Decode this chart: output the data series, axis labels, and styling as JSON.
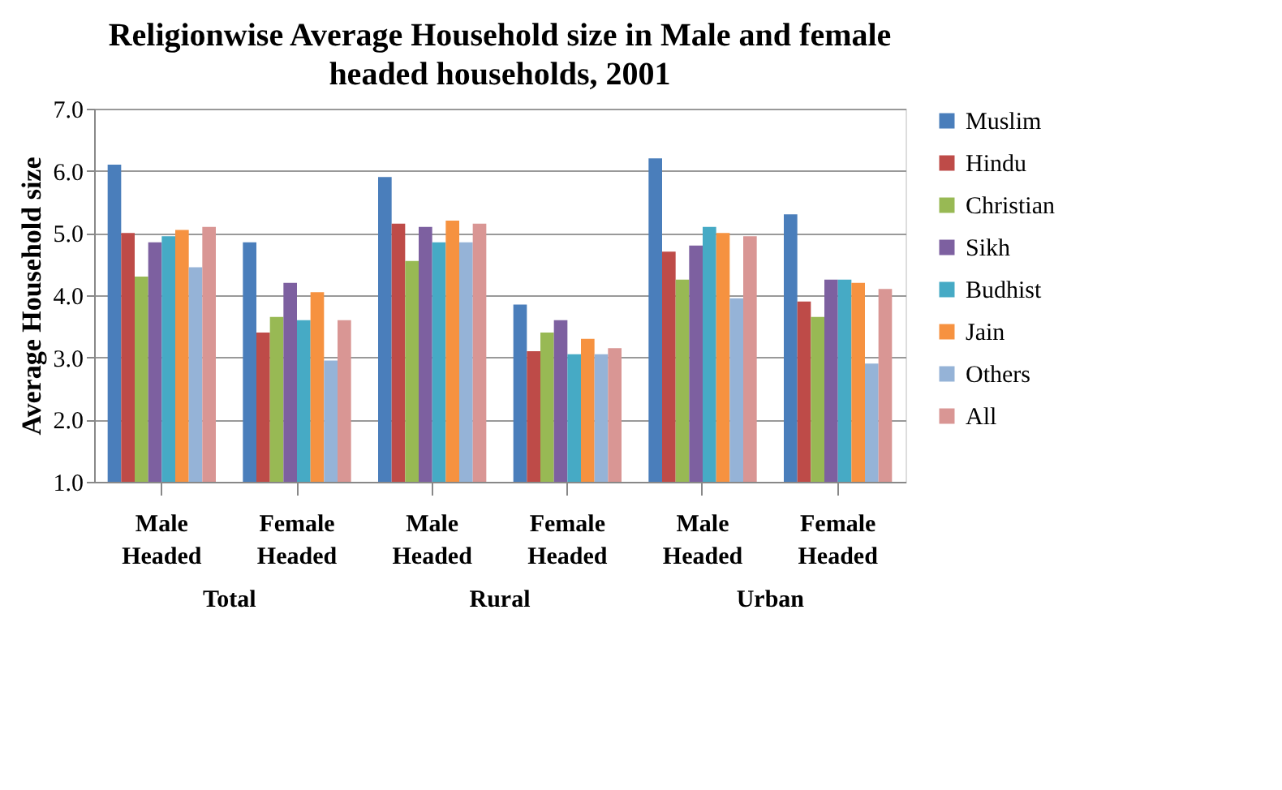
{
  "chart_data": {
    "type": "bar",
    "title": "Religionwise Average Household size in Male and female headed households, 2001",
    "ylabel": "Average Household size",
    "categories": [
      "Male Headed",
      "Female Headed",
      "Male Headed",
      "Female Headed",
      "Male Headed",
      "Female Headed"
    ],
    "annotations": [
      "Total",
      "Rural",
      "Urban"
    ],
    "series": [
      {
        "name": "Muslim",
        "color": "#4a7ebb",
        "values": [
          6.1,
          4.85,
          5.9,
          3.85,
          6.2,
          5.3
        ]
      },
      {
        "name": "Hindu",
        "color": "#be4b48",
        "values": [
          5.0,
          3.4,
          5.15,
          3.1,
          4.7,
          3.9
        ]
      },
      {
        "name": "Christian",
        "color": "#98b954",
        "values": [
          4.3,
          3.65,
          4.55,
          3.4,
          4.25,
          3.65
        ]
      },
      {
        "name": "Sikh",
        "color": "#7d60a0",
        "values": [
          4.85,
          4.2,
          5.1,
          3.6,
          4.8,
          4.25
        ]
      },
      {
        "name": "Budhist",
        "color": "#46aac5",
        "values": [
          4.95,
          3.6,
          4.85,
          3.05,
          5.1,
          4.25
        ]
      },
      {
        "name": "Jain",
        "color": "#f69240",
        "values": [
          5.05,
          4.05,
          5.2,
          3.3,
          5.0,
          4.2
        ]
      },
      {
        "name": "Others",
        "color": "#95b3d7",
        "values": [
          4.45,
          2.95,
          4.85,
          3.05,
          3.95,
          2.9
        ]
      },
      {
        "name": "All",
        "color": "#d99694",
        "values": [
          5.1,
          3.6,
          5.15,
          3.15,
          4.95,
          4.1
        ]
      }
    ],
    "ylim": [
      1,
      7
    ],
    "yticks": [
      {
        "value": 1,
        "label": "1.0"
      },
      {
        "value": 2,
        "label": "2.0"
      },
      {
        "value": 3,
        "label": "3.0"
      },
      {
        "value": 4,
        "label": "4.0"
      },
      {
        "value": 5,
        "label": "5.0"
      },
      {
        "value": 6,
        "label": "6.0"
      },
      {
        "value": 7,
        "label": "7.0"
      }
    ],
    "grid": "y",
    "legend": "right"
  }
}
